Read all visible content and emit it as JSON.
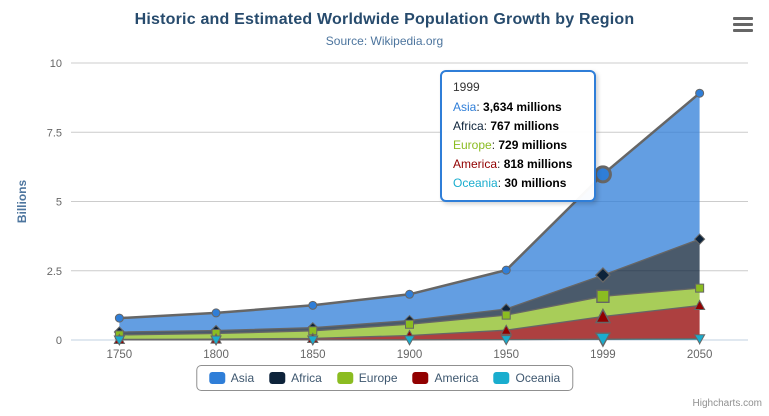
{
  "title": "Historic and Estimated Worldwide Population Growth by Region",
  "subtitle": "Source: Wikipedia.org",
  "credits": "Highcharts.com",
  "colors": {
    "title": "#274b6d",
    "subtitle": "#4d759e",
    "axis_label": "#666666",
    "axis_title": "#4d759e",
    "gridline": "#cccccc",
    "axis_line": "#C0D0E0",
    "series_line": "#666666",
    "legend_text": "#3E576F",
    "legend_border": "#909090",
    "tooltip_border": "#2f7ed8"
  },
  "chart_data": {
    "type": "area",
    "stacking": "normal",
    "title": "Historic and Estimated Worldwide Population Growth by Region",
    "subtitle": "Source: Wikipedia.org",
    "categories": [
      "1750",
      "1800",
      "1850",
      "1900",
      "1950",
      "1999",
      "2050"
    ],
    "xlabel": "",
    "ylabel": "Billions",
    "unit": "millions",
    "ylim": [
      0,
      10
    ],
    "yticks": [
      "0",
      "2.5",
      "5",
      "7.5",
      "10"
    ],
    "grid": true,
    "legend_position": "bottom",
    "series": [
      {
        "name": "Asia",
        "color": "#2f7ed8",
        "marker": "circle",
        "values": [
          502,
          635,
          809,
          947,
          1402,
          3634,
          5268
        ]
      },
      {
        "name": "Africa",
        "color": "#0d233a",
        "marker": "diamond",
        "values": [
          106,
          107,
          111,
          133,
          221,
          767,
          1766
        ]
      },
      {
        "name": "Europe",
        "color": "#8bbc21",
        "marker": "square",
        "values": [
          163,
          203,
          276,
          408,
          547,
          729,
          628
        ]
      },
      {
        "name": "America",
        "color": "#910000",
        "marker": "triangle",
        "values": [
          18,
          31,
          54,
          156,
          339,
          818,
          1201
        ]
      },
      {
        "name": "Oceania",
        "color": "#1aadce",
        "marker": "triangle-down",
        "values": [
          2,
          2,
          2,
          6,
          13,
          30,
          46
        ]
      }
    ]
  },
  "tooltip": {
    "header": "1999",
    "hover_index": 5,
    "rows": [
      {
        "name": "Asia",
        "value": "3,634 millions"
      },
      {
        "name": "Africa",
        "value": "767 millions"
      },
      {
        "name": "Europe",
        "value": "729 millions"
      },
      {
        "name": "America",
        "value": "818 millions"
      },
      {
        "name": "Oceania",
        "value": "30 millions"
      }
    ]
  }
}
